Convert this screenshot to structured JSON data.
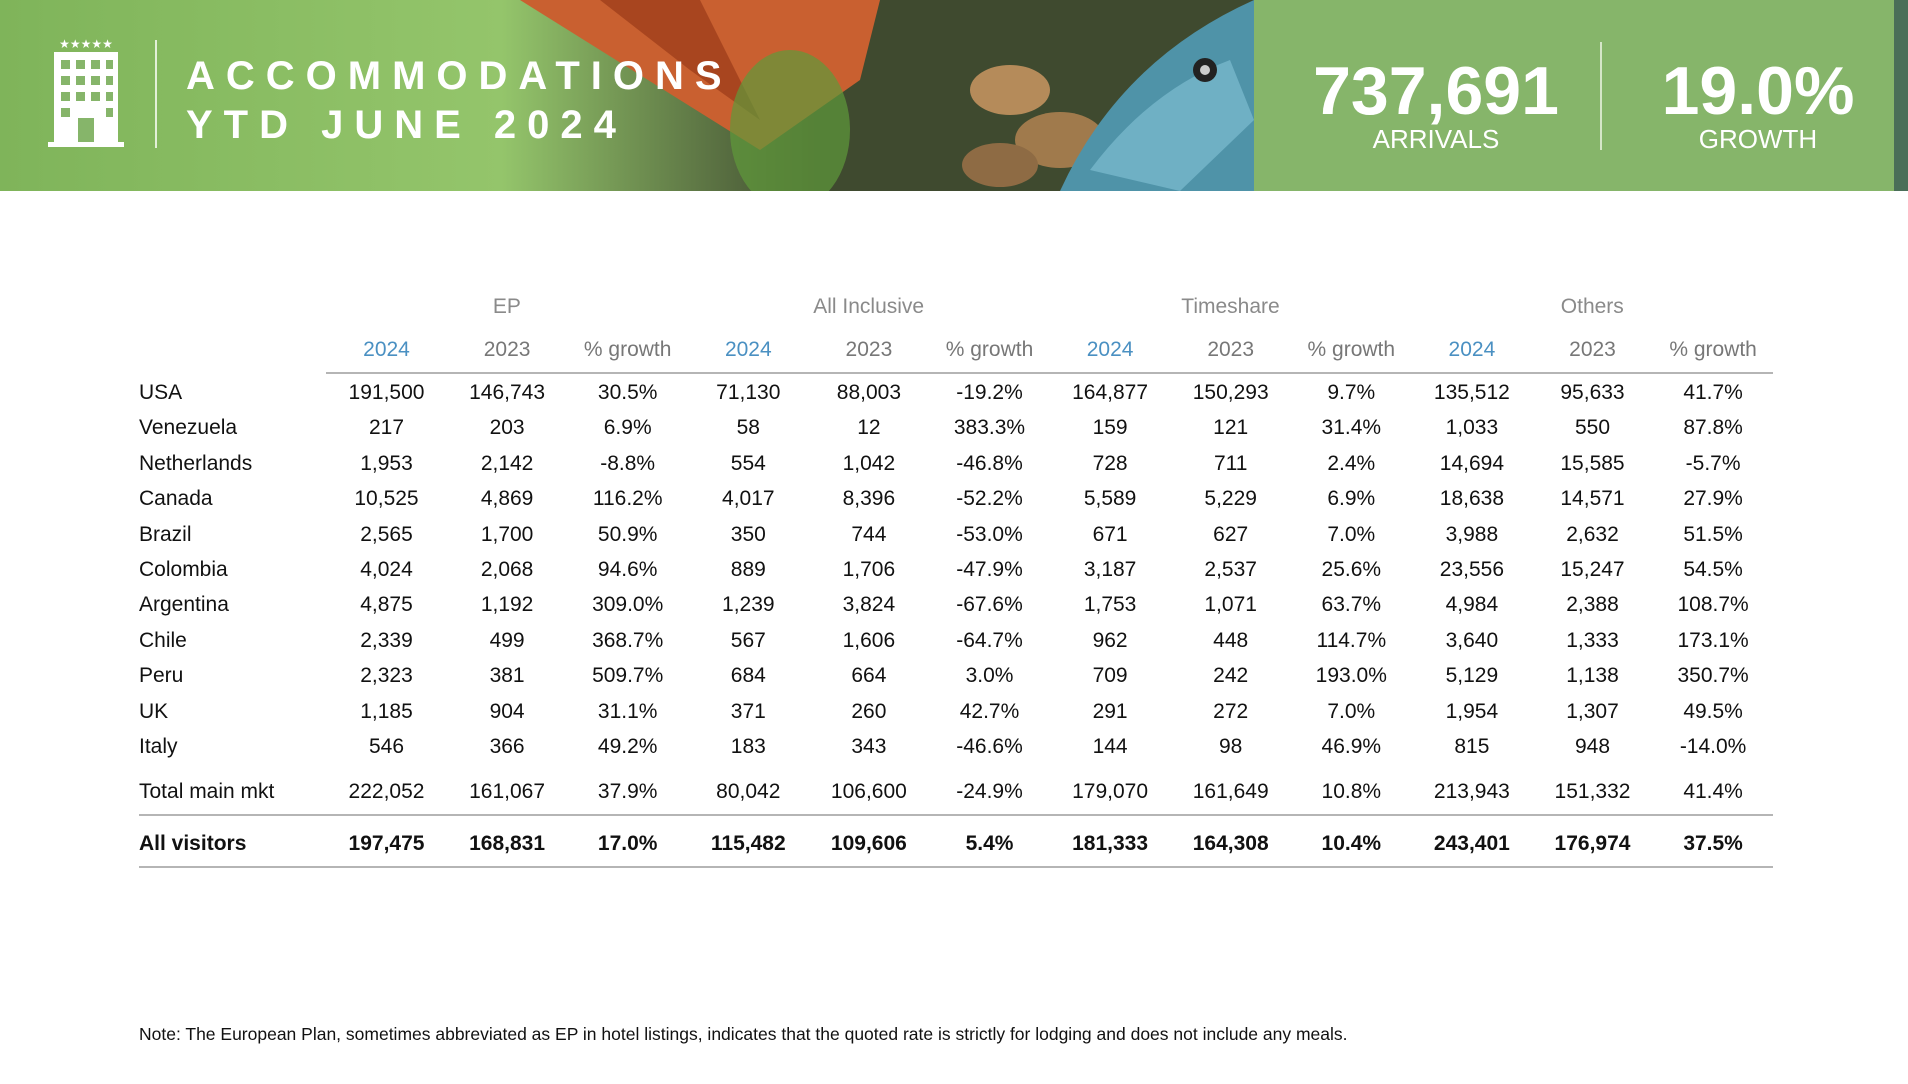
{
  "header": {
    "title_line1": "ACCOMMODATIONS",
    "title_line2": "YTD JUNE 2024",
    "kpis": [
      {
        "value": "737,691",
        "label": "ARRIVALS"
      },
      {
        "value": "19.0%",
        "label": "GROWTH"
      }
    ]
  },
  "table": {
    "groups": [
      "EP",
      "All Inclusive",
      "Timeshare",
      "Others"
    ],
    "columns": [
      "2024",
      "2023",
      "% growth",
      "2024",
      "2023",
      "% growth",
      "2024",
      "2023",
      "% growth",
      "2024",
      "2023",
      "% growth"
    ],
    "rows": [
      {
        "label": "USA",
        "cells": [
          "191,500",
          "146,743",
          "30.5%",
          "71,130",
          "88,003",
          "-19.2%",
          "164,877",
          "150,293",
          "9.7%",
          "135,512",
          "95,633",
          "41.7%"
        ]
      },
      {
        "label": "Venezuela",
        "cells": [
          "217",
          "203",
          "6.9%",
          "58",
          "12",
          "383.3%",
          "159",
          "121",
          "31.4%",
          "1,033",
          "550",
          "87.8%"
        ]
      },
      {
        "label": "Netherlands",
        "cells": [
          "1,953",
          "2,142",
          "-8.8%",
          "554",
          "1,042",
          "-46.8%",
          "728",
          "711",
          "2.4%",
          "14,694",
          "15,585",
          "-5.7%"
        ]
      },
      {
        "label": "Canada",
        "cells": [
          "10,525",
          "4,869",
          "116.2%",
          "4,017",
          "8,396",
          "-52.2%",
          "5,589",
          "5,229",
          "6.9%",
          "18,638",
          "14,571",
          "27.9%"
        ]
      },
      {
        "label": "Brazil",
        "cells": [
          "2,565",
          "1,700",
          "50.9%",
          "350",
          "744",
          "-53.0%",
          "671",
          "627",
          "7.0%",
          "3,988",
          "2,632",
          "51.5%"
        ]
      },
      {
        "label": "Colombia",
        "cells": [
          "4,024",
          "2,068",
          "94.6%",
          "889",
          "1,706",
          "-47.9%",
          "3,187",
          "2,537",
          "25.6%",
          "23,556",
          "15,247",
          "54.5%"
        ]
      },
      {
        "label": "Argentina",
        "cells": [
          "4,875",
          "1,192",
          "309.0%",
          "1,239",
          "3,824",
          "-67.6%",
          "1,753",
          "1,071",
          "63.7%",
          "4,984",
          "2,388",
          "108.7%"
        ]
      },
      {
        "label": "Chile",
        "cells": [
          "2,339",
          "499",
          "368.7%",
          "567",
          "1,606",
          "-64.7%",
          "962",
          "448",
          "114.7%",
          "3,640",
          "1,333",
          "173.1%"
        ]
      },
      {
        "label": "Peru",
        "cells": [
          "2,323",
          "381",
          "509.7%",
          "684",
          "664",
          "3.0%",
          "709",
          "242",
          "193.0%",
          "5,129",
          "1,138",
          "350.7%"
        ]
      },
      {
        "label": "UK",
        "cells": [
          "1,185",
          "904",
          "31.1%",
          "371",
          "260",
          "42.7%",
          "291",
          "272",
          "7.0%",
          "1,954",
          "1,307",
          "49.5%"
        ]
      },
      {
        "label": "Italy",
        "cells": [
          "546",
          "366",
          "49.2%",
          "183",
          "343",
          "-46.6%",
          "144",
          "98",
          "46.9%",
          "815",
          "948",
          "-14.0%"
        ]
      }
    ],
    "total_row": {
      "label": "Total main mkt",
      "cells": [
        "222,052",
        "161,067",
        "37.9%",
        "80,042",
        "106,600",
        "-24.9%",
        "179,070",
        "161,649",
        "10.8%",
        "213,943",
        "151,332",
        "41.4%"
      ]
    },
    "all_row": {
      "label": "All visitors",
      "cells": [
        "197,475",
        "168,831",
        "17.0%",
        "115,482",
        "109,606",
        "5.4%",
        "181,333",
        "164,308",
        "10.4%",
        "243,401",
        "176,974",
        "37.5%"
      ]
    }
  },
  "note": "Note: The European Plan, sometimes abbreviated as EP in hotel listings, indicates that the quoted rate is strictly for lodging and does not include any meals."
}
